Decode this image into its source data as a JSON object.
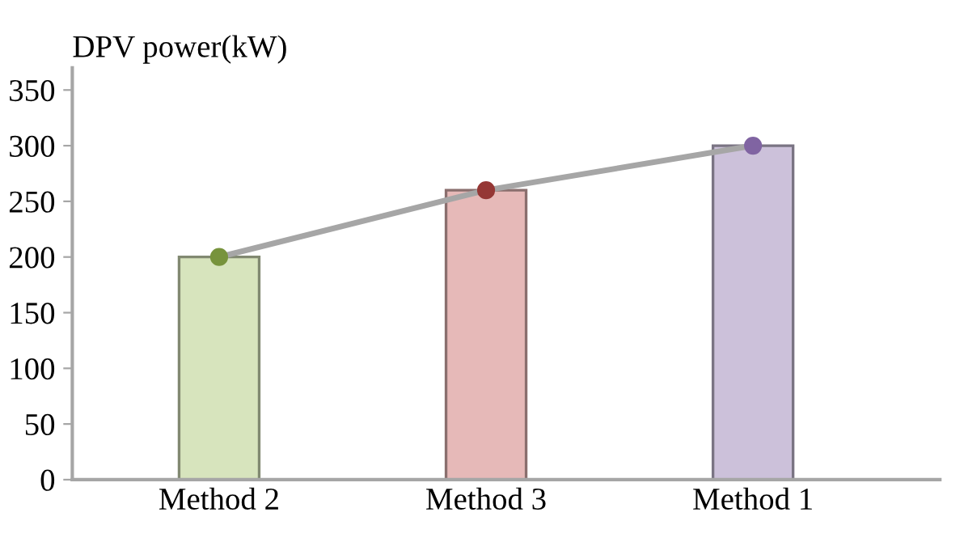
{
  "chart_data": {
    "type": "bar",
    "ylabel": "DPV power(kW)",
    "categories": [
      "Method 2",
      "Method 3",
      "Method 1"
    ],
    "series": [
      {
        "colors": [
          "#d7e4bd",
          "#e6b9b8",
          "#ccc1da"
        ],
        "values": [
          200,
          260,
          300
        ]
      },
      {
        "type": "line",
        "color": "#a6a6a6",
        "colors": [
          "#77933c",
          "#953735",
          "#8064a2"
        ],
        "marker": "circle",
        "line_style": "solid",
        "values": [
          200,
          260,
          300
        ]
      }
    ],
    "ylim": [
      0,
      370
    ],
    "yticks": [
      0,
      50,
      100,
      150,
      200,
      250,
      300,
      350
    ],
    "grid": false,
    "legend": false
  }
}
